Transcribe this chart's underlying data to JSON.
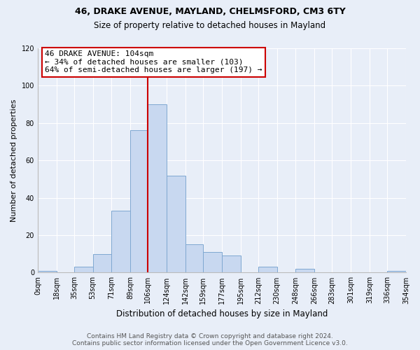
{
  "title1": "46, DRAKE AVENUE, MAYLAND, CHELMSFORD, CM3 6TY",
  "title2": "Size of property relative to detached houses in Mayland",
  "xlabel": "Distribution of detached houses by size in Mayland",
  "ylabel": "Number of detached properties",
  "bin_labels": [
    "0sqm",
    "18sqm",
    "35sqm",
    "53sqm",
    "71sqm",
    "89sqm",
    "106sqm",
    "124sqm",
    "142sqm",
    "159sqm",
    "177sqm",
    "195sqm",
    "212sqm",
    "230sqm",
    "248sqm",
    "266sqm",
    "283sqm",
    "301sqm",
    "319sqm",
    "336sqm",
    "354sqm"
  ],
  "bar_values": [
    1,
    0,
    3,
    10,
    33,
    76,
    90,
    52,
    15,
    11,
    9,
    0,
    3,
    0,
    2,
    0,
    0,
    0,
    0,
    1
  ],
  "bar_color": "#c8d8f0",
  "bar_edge_color": "#7fa8d1",
  "vline_color": "#cc0000",
  "annotation_box_color": "#ffffff",
  "annotation_box_edge": "#cc0000",
  "ann_line1": "46 DRAKE AVENUE: 104sqm",
  "ann_line2": "← 34% of detached houses are smaller (103)",
  "ann_line3": "64% of semi-detached houses are larger (197) →",
  "ylim": [
    0,
    120
  ],
  "yticks": [
    0,
    20,
    40,
    60,
    80,
    100,
    120
  ],
  "bin_edges": [
    0,
    18,
    35,
    53,
    71,
    89,
    106,
    124,
    142,
    159,
    177,
    195,
    212,
    230,
    248,
    266,
    283,
    301,
    319,
    336,
    354
  ],
  "vline_x": 106,
  "footer1": "Contains HM Land Registry data © Crown copyright and database right 2024.",
  "footer2": "Contains public sector information licensed under the Open Government Licence v3.0.",
  "bg_color": "#e8eef8",
  "grid_color": "#ffffff",
  "title1_fontsize": 9,
  "title2_fontsize": 8.5,
  "ylabel_fontsize": 8,
  "xlabel_fontsize": 8.5,
  "tick_fontsize": 7,
  "ann_fontsize": 8,
  "footer_fontsize": 6.5
}
